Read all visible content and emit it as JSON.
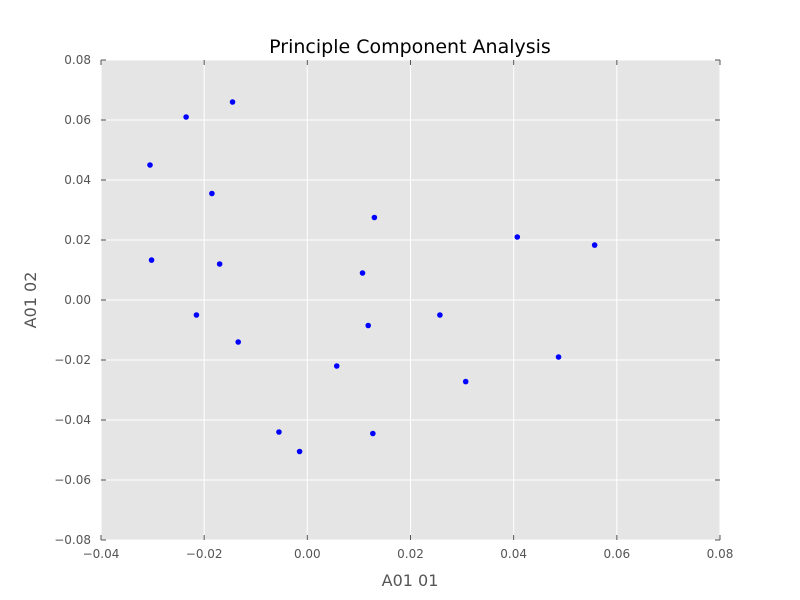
{
  "chart_data": {
    "type": "scatter",
    "title": "Principle Component Analysis",
    "xlabel": "A01 01",
    "ylabel": "A01 02",
    "xlim": [
      -0.04,
      0.08
    ],
    "ylim": [
      -0.08,
      0.08
    ],
    "xticks": [
      -0.04,
      -0.02,
      0.0,
      0.02,
      0.04,
      0.06,
      0.08
    ],
    "yticks": [
      -0.08,
      -0.06,
      -0.04,
      -0.02,
      0.0,
      0.02,
      0.04,
      0.06,
      0.08
    ],
    "xtick_labels": [
      "−0.04",
      "−0.02",
      "0.00",
      "0.02",
      "0.04",
      "0.06",
      "0.08"
    ],
    "ytick_labels": [
      "−0.08",
      "−0.06",
      "−0.04",
      "−0.02",
      "0.00",
      "0.02",
      "0.04",
      "0.06",
      "0.08"
    ],
    "grid": true,
    "colors": {
      "background": "#e5e5e5",
      "grid": "#ffffff",
      "points": "#0000ff"
    },
    "series": [
      {
        "points": [
          {
            "x": -0.0145,
            "y": 0.066
          },
          {
            "x": -0.0235,
            "y": 0.061
          },
          {
            "x": -0.0305,
            "y": 0.045
          },
          {
            "x": -0.0185,
            "y": 0.0355
          },
          {
            "x": -0.0302,
            "y": 0.0133
          },
          {
            "x": -0.017,
            "y": 0.012
          },
          {
            "x": -0.0215,
            "y": -0.005
          },
          {
            "x": -0.0134,
            "y": -0.014
          },
          {
            "x": -0.0055,
            "y": -0.044
          },
          {
            "x": -0.0015,
            "y": -0.0505
          },
          {
            "x": 0.0057,
            "y": -0.022
          },
          {
            "x": 0.0107,
            "y": 0.009
          },
          {
            "x": 0.0118,
            "y": -0.0085
          },
          {
            "x": 0.0127,
            "y": -0.0445
          },
          {
            "x": 0.013,
            "y": 0.0275
          },
          {
            "x": 0.0257,
            "y": -0.005
          },
          {
            "x": 0.0307,
            "y": -0.0272
          },
          {
            "x": 0.0407,
            "y": 0.021
          },
          {
            "x": 0.0487,
            "y": -0.019
          },
          {
            "x": 0.0557,
            "y": 0.0183
          }
        ]
      }
    ]
  }
}
